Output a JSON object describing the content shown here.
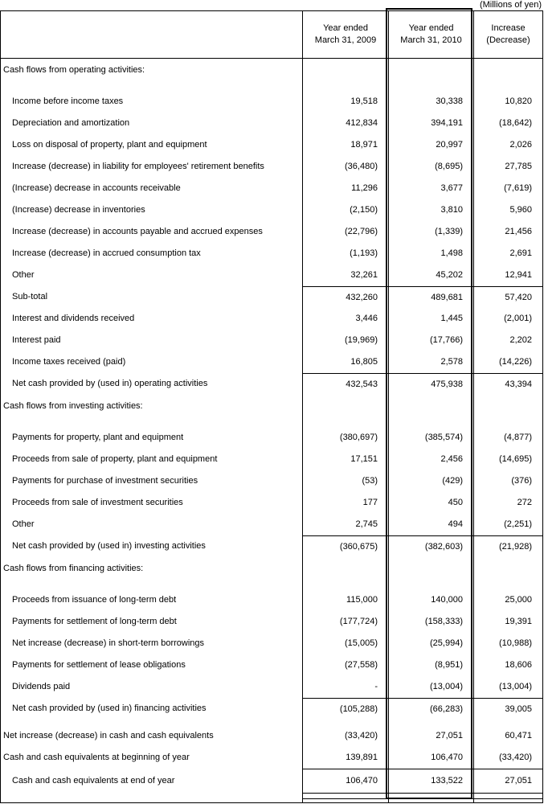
{
  "units_note": "(Millions of yen)",
  "colors": {
    "text": "#000000",
    "background": "#ffffff",
    "rule": "#000000"
  },
  "table": {
    "header": {
      "columns": [
        {
          "line1": "Year ended",
          "line2": "March 31, 2009"
        },
        {
          "line1": "Year ended",
          "line2": "March 31, 2010"
        },
        {
          "line1": "Increase",
          "line2": "(Decrease)"
        }
      ],
      "highlighted_column": "Year ended March 31, 2010"
    },
    "rows": [
      {
        "kind": "section",
        "label": "Cash flows from operating activities:"
      },
      {
        "kind": "item",
        "label": "Income before income taxes",
        "values": [
          "19,518",
          "30,338",
          "10,820"
        ]
      },
      {
        "kind": "item",
        "label": "Depreciation and amortization",
        "values": [
          "412,834",
          "394,191",
          "(18,642)"
        ]
      },
      {
        "kind": "item",
        "label": "Loss on disposal of property, plant and equipment",
        "values": [
          "18,971",
          "20,997",
          "2,026"
        ]
      },
      {
        "kind": "item",
        "label": "Increase (decrease) in liability for employees' retirement benefits",
        "values": [
          "(36,480)",
          "(8,695)",
          "27,785"
        ]
      },
      {
        "kind": "item",
        "label": "(Increase) decrease in accounts receivable",
        "values": [
          "11,296",
          "3,677",
          "(7,619)"
        ]
      },
      {
        "kind": "item",
        "label": "(Increase) decrease in inventories",
        "values": [
          "(2,150)",
          "3,810",
          "5,960"
        ]
      },
      {
        "kind": "item",
        "label": "Increase (decrease) in accounts payable and accrued expenses",
        "values": [
          "(22,796)",
          "(1,339)",
          "21,456"
        ]
      },
      {
        "kind": "item",
        "label": "Increase (decrease) in accrued consumption tax",
        "values": [
          "(1,193)",
          "1,498",
          "2,691"
        ]
      },
      {
        "kind": "item",
        "label": "Other",
        "values": [
          "32,261",
          "45,202",
          "12,941"
        ]
      },
      {
        "kind": "total",
        "label": "Sub-total",
        "values": [
          "432,260",
          "489,681",
          "57,420"
        ]
      },
      {
        "kind": "item",
        "label": "Interest and dividends received",
        "values": [
          "3,446",
          "1,445",
          "(2,001)"
        ]
      },
      {
        "kind": "item",
        "label": "Interest paid",
        "values": [
          "(19,969)",
          "(17,766)",
          "2,202"
        ]
      },
      {
        "kind": "item",
        "label": "Income taxes received (paid)",
        "values": [
          "16,805",
          "2,578",
          "(14,226)"
        ]
      },
      {
        "kind": "total",
        "label": "Net cash provided by (used in) operating activities",
        "values": [
          "432,543",
          "475,938",
          "43,394"
        ]
      },
      {
        "kind": "section",
        "label": "Cash flows from investing activities:"
      },
      {
        "kind": "item",
        "label": "Payments for property, plant and equipment",
        "values": [
          "(380,697)",
          "(385,574)",
          "(4,877)"
        ]
      },
      {
        "kind": "item",
        "label": "Proceeds from sale of property, plant and equipment",
        "values": [
          "17,151",
          "2,456",
          "(14,695)"
        ]
      },
      {
        "kind": "item",
        "label": "Payments for purchase of investment securities",
        "values": [
          "(53)",
          "(429)",
          "(376)"
        ]
      },
      {
        "kind": "item",
        "label": "Proceeds from sale of investment securities",
        "values": [
          "177",
          "450",
          "272"
        ]
      },
      {
        "kind": "item",
        "label": "Other",
        "values": [
          "2,745",
          "494",
          "(2,251)"
        ]
      },
      {
        "kind": "total",
        "label": "Net cash provided by (used in) investing activities",
        "values": [
          "(360,675)",
          "(382,603)",
          "(21,928)"
        ]
      },
      {
        "kind": "section",
        "label": "Cash flows from financing activities:"
      },
      {
        "kind": "item",
        "label": "Proceeds from issuance of long-term debt",
        "values": [
          "115,000",
          "140,000",
          "25,000"
        ]
      },
      {
        "kind": "item",
        "label": "Payments for settlement of long-term debt",
        "values": [
          "(177,724)",
          "(158,333)",
          "19,391"
        ]
      },
      {
        "kind": "item",
        "label": "Net increase (decrease) in short-term borrowings",
        "values": [
          "(15,005)",
          "(25,994)",
          "(10,988)"
        ]
      },
      {
        "kind": "item",
        "label": "Payments for settlement of lease obligations",
        "values": [
          "(27,558)",
          "(8,951)",
          "18,606"
        ]
      },
      {
        "kind": "item",
        "label": "Dividends paid",
        "values": [
          "-",
          "(13,004)",
          "(13,004)"
        ]
      },
      {
        "kind": "total",
        "label": "Net cash provided by (used in) financing activities",
        "values": [
          "(105,288)",
          "(66,283)",
          "39,005"
        ]
      },
      {
        "kind": "flush",
        "gap_before": true,
        "label": "Net increase (decrease) in cash and cash equivalents",
        "values": [
          "(33,420)",
          "27,051",
          "60,471"
        ]
      },
      {
        "kind": "flush",
        "label": "Cash and cash equivalents at beginning of year",
        "values": [
          "139,891",
          "106,470",
          "(33,420)"
        ]
      },
      {
        "kind": "end",
        "label": "Cash and cash equivalents at end of year",
        "values": [
          "106,470",
          "133,522",
          "27,051"
        ]
      }
    ]
  }
}
